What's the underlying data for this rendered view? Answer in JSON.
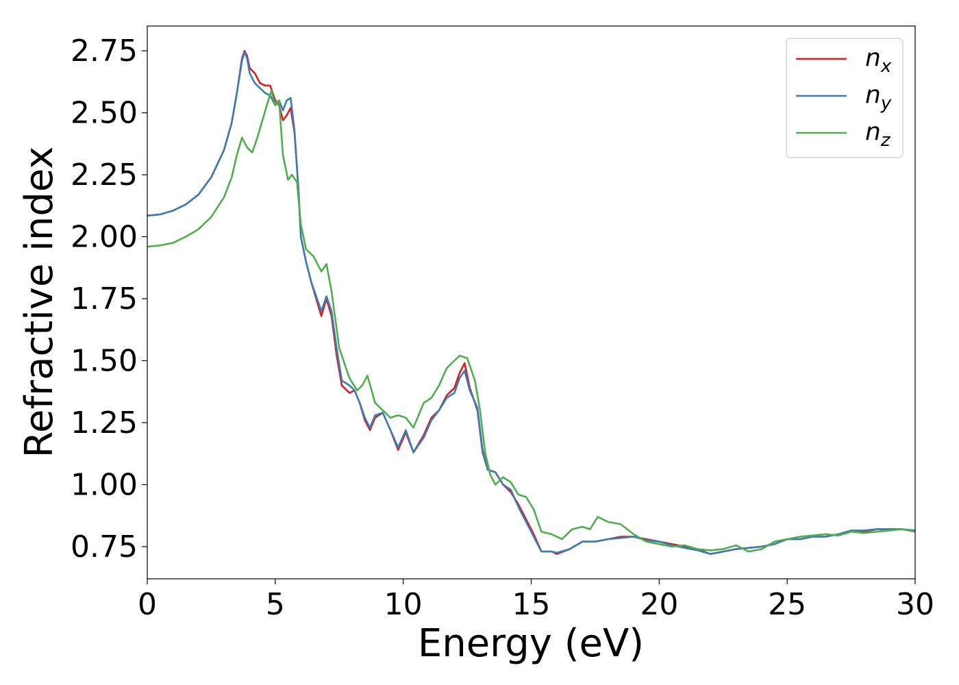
{
  "chart_data": {
    "type": "line",
    "title": "",
    "xlabel": "Energy (eV)",
    "ylabel": "Refractive index",
    "xlim": [
      0,
      30
    ],
    "ylim": [
      0.62,
      2.85
    ],
    "xticks": [
      "0",
      "5",
      "10",
      "15",
      "20",
      "25",
      "30"
    ],
    "yticks": [
      "0.75",
      "1.00",
      "1.25",
      "1.50",
      "1.75",
      "2.00",
      "2.25",
      "2.50",
      "2.75"
    ],
    "grid": false,
    "legend_position": "top-right",
    "series": [
      {
        "name": "n",
        "subscript": "x",
        "color": "#e41a1c",
        "points": [
          [
            0,
            2.085
          ],
          [
            0.5,
            2.09
          ],
          [
            1,
            2.105
          ],
          [
            1.5,
            2.13
          ],
          [
            2,
            2.17
          ],
          [
            2.5,
            2.24
          ],
          [
            3,
            2.35
          ],
          [
            3.3,
            2.46
          ],
          [
            3.5,
            2.58
          ],
          [
            3.7,
            2.72
          ],
          [
            3.8,
            2.75
          ],
          [
            3.9,
            2.73
          ],
          [
            4.0,
            2.68
          ],
          [
            4.2,
            2.66
          ],
          [
            4.4,
            2.62
          ],
          [
            4.6,
            2.61
          ],
          [
            4.8,
            2.61
          ],
          [
            5.0,
            2.55
          ],
          [
            5.15,
            2.53
          ],
          [
            5.3,
            2.47
          ],
          [
            5.45,
            2.49
          ],
          [
            5.6,
            2.52
          ],
          [
            5.75,
            2.42
          ],
          [
            5.9,
            2.2
          ],
          [
            6.0,
            2.0
          ],
          [
            6.2,
            1.9
          ],
          [
            6.4,
            1.82
          ],
          [
            6.6,
            1.75
          ],
          [
            6.8,
            1.68
          ],
          [
            7.0,
            1.75
          ],
          [
            7.2,
            1.68
          ],
          [
            7.4,
            1.52
          ],
          [
            7.6,
            1.4
          ],
          [
            7.9,
            1.37
          ],
          [
            8.1,
            1.38
          ],
          [
            8.3,
            1.33
          ],
          [
            8.5,
            1.26
          ],
          [
            8.7,
            1.22
          ],
          [
            8.9,
            1.27
          ],
          [
            9.2,
            1.29
          ],
          [
            9.5,
            1.22
          ],
          [
            9.8,
            1.14
          ],
          [
            10.1,
            1.21
          ],
          [
            10.4,
            1.13
          ],
          [
            10.8,
            1.2
          ],
          [
            11.1,
            1.27
          ],
          [
            11.4,
            1.3
          ],
          [
            11.7,
            1.36
          ],
          [
            12.0,
            1.39
          ],
          [
            12.2,
            1.45
          ],
          [
            12.4,
            1.49
          ],
          [
            12.6,
            1.39
          ],
          [
            12.9,
            1.3
          ],
          [
            13.1,
            1.13
          ],
          [
            13.3,
            1.06
          ],
          [
            13.6,
            1.05
          ],
          [
            13.9,
            1.0
          ],
          [
            14.2,
            0.97
          ],
          [
            14.5,
            0.92
          ],
          [
            14.8,
            0.86
          ],
          [
            15.1,
            0.8
          ],
          [
            15.4,
            0.73
          ],
          [
            15.8,
            0.73
          ],
          [
            16.0,
            0.72
          ],
          [
            16.5,
            0.74
          ],
          [
            17.0,
            0.77
          ],
          [
            17.5,
            0.77
          ],
          [
            18.0,
            0.78
          ],
          [
            18.5,
            0.79
          ],
          [
            19.0,
            0.79
          ],
          [
            19.5,
            0.78
          ],
          [
            20.0,
            0.77
          ],
          [
            20.5,
            0.76
          ],
          [
            21.0,
            0.75
          ],
          [
            21.5,
            0.74
          ],
          [
            22.0,
            0.72
          ],
          [
            22.5,
            0.73
          ],
          [
            23.0,
            0.74
          ],
          [
            23.5,
            0.745
          ],
          [
            24.0,
            0.75
          ],
          [
            24.5,
            0.76
          ],
          [
            25.0,
            0.78
          ],
          [
            25.5,
            0.78
          ],
          [
            26.0,
            0.79
          ],
          [
            26.5,
            0.79
          ],
          [
            27.0,
            0.8
          ],
          [
            27.5,
            0.81
          ],
          [
            28.0,
            0.81
          ],
          [
            28.5,
            0.82
          ],
          [
            29.0,
            0.82
          ],
          [
            29.5,
            0.82
          ],
          [
            30.0,
            0.81
          ]
        ]
      },
      {
        "name": "n",
        "subscript": "y",
        "color": "#377eb8",
        "points": [
          [
            0,
            2.085
          ],
          [
            0.5,
            2.09
          ],
          [
            1,
            2.105
          ],
          [
            1.5,
            2.13
          ],
          [
            2,
            2.17
          ],
          [
            2.5,
            2.24
          ],
          [
            3,
            2.35
          ],
          [
            3.3,
            2.46
          ],
          [
            3.5,
            2.58
          ],
          [
            3.7,
            2.71
          ],
          [
            3.8,
            2.745
          ],
          [
            3.9,
            2.72
          ],
          [
            4.0,
            2.66
          ],
          [
            4.2,
            2.62
          ],
          [
            4.4,
            2.6
          ],
          [
            4.6,
            2.58
          ],
          [
            4.8,
            2.57
          ],
          [
            5.0,
            2.53
          ],
          [
            5.15,
            2.55
          ],
          [
            5.3,
            2.51
          ],
          [
            5.45,
            2.55
          ],
          [
            5.6,
            2.56
          ],
          [
            5.75,
            2.43
          ],
          [
            5.9,
            2.2
          ],
          [
            6.0,
            2.0
          ],
          [
            6.2,
            1.9
          ],
          [
            6.4,
            1.82
          ],
          [
            6.6,
            1.76
          ],
          [
            6.8,
            1.7
          ],
          [
            7.0,
            1.76
          ],
          [
            7.2,
            1.7
          ],
          [
            7.4,
            1.55
          ],
          [
            7.6,
            1.42
          ],
          [
            7.9,
            1.4
          ],
          [
            8.1,
            1.38
          ],
          [
            8.3,
            1.33
          ],
          [
            8.5,
            1.27
          ],
          [
            8.7,
            1.23
          ],
          [
            8.9,
            1.28
          ],
          [
            9.2,
            1.29
          ],
          [
            9.5,
            1.22
          ],
          [
            9.8,
            1.15
          ],
          [
            10.1,
            1.22
          ],
          [
            10.4,
            1.13
          ],
          [
            10.8,
            1.19
          ],
          [
            11.1,
            1.26
          ],
          [
            11.4,
            1.3
          ],
          [
            11.7,
            1.35
          ],
          [
            12.0,
            1.37
          ],
          [
            12.2,
            1.43
          ],
          [
            12.4,
            1.46
          ],
          [
            12.6,
            1.38
          ],
          [
            12.9,
            1.31
          ],
          [
            13.1,
            1.14
          ],
          [
            13.3,
            1.06
          ],
          [
            13.6,
            1.05
          ],
          [
            13.9,
            1.0
          ],
          [
            14.2,
            0.98
          ],
          [
            14.5,
            0.91
          ],
          [
            14.8,
            0.85
          ],
          [
            15.1,
            0.79
          ],
          [
            15.4,
            0.73
          ],
          [
            15.8,
            0.73
          ],
          [
            16.0,
            0.725
          ],
          [
            16.5,
            0.74
          ],
          [
            17.0,
            0.77
          ],
          [
            17.5,
            0.77
          ],
          [
            18.0,
            0.78
          ],
          [
            18.5,
            0.785
          ],
          [
            19.0,
            0.79
          ],
          [
            19.5,
            0.775
          ],
          [
            20.0,
            0.77
          ],
          [
            20.5,
            0.755
          ],
          [
            21.0,
            0.745
          ],
          [
            21.5,
            0.735
          ],
          [
            22.0,
            0.72
          ],
          [
            22.5,
            0.73
          ],
          [
            23.0,
            0.74
          ],
          [
            23.5,
            0.745
          ],
          [
            24.0,
            0.75
          ],
          [
            24.5,
            0.76
          ],
          [
            25.0,
            0.78
          ],
          [
            25.5,
            0.78
          ],
          [
            26.0,
            0.79
          ],
          [
            26.5,
            0.79
          ],
          [
            27.0,
            0.8
          ],
          [
            27.5,
            0.815
          ],
          [
            28.0,
            0.815
          ],
          [
            28.5,
            0.82
          ],
          [
            29.0,
            0.82
          ],
          [
            29.5,
            0.82
          ],
          [
            30.0,
            0.815
          ]
        ]
      },
      {
        "name": "n",
        "subscript": "z",
        "color": "#4daf4a",
        "points": [
          [
            0,
            1.96
          ],
          [
            0.5,
            1.965
          ],
          [
            1,
            1.975
          ],
          [
            1.5,
            2.0
          ],
          [
            2,
            2.03
          ],
          [
            2.5,
            2.08
          ],
          [
            3,
            2.16
          ],
          [
            3.3,
            2.24
          ],
          [
            3.5,
            2.33
          ],
          [
            3.7,
            2.4
          ],
          [
            3.9,
            2.36
          ],
          [
            4.1,
            2.34
          ],
          [
            4.3,
            2.4
          ],
          [
            4.5,
            2.47
          ],
          [
            4.7,
            2.54
          ],
          [
            4.85,
            2.59
          ],
          [
            5.0,
            2.53
          ],
          [
            5.15,
            2.55
          ],
          [
            5.3,
            2.33
          ],
          [
            5.5,
            2.23
          ],
          [
            5.65,
            2.25
          ],
          [
            5.85,
            2.22
          ],
          [
            6.0,
            2.05
          ],
          [
            6.2,
            1.95
          ],
          [
            6.5,
            1.92
          ],
          [
            6.8,
            1.86
          ],
          [
            7.0,
            1.89
          ],
          [
            7.2,
            1.78
          ],
          [
            7.5,
            1.55
          ],
          [
            7.9,
            1.43
          ],
          [
            8.2,
            1.38
          ],
          [
            8.4,
            1.4
          ],
          [
            8.6,
            1.44
          ],
          [
            8.9,
            1.33
          ],
          [
            9.2,
            1.3
          ],
          [
            9.5,
            1.27
          ],
          [
            9.8,
            1.28
          ],
          [
            10.1,
            1.27
          ],
          [
            10.4,
            1.23
          ],
          [
            10.8,
            1.33
          ],
          [
            11.1,
            1.35
          ],
          [
            11.4,
            1.4
          ],
          [
            11.7,
            1.47
          ],
          [
            12.0,
            1.5
          ],
          [
            12.2,
            1.52
          ],
          [
            12.5,
            1.51
          ],
          [
            12.8,
            1.42
          ],
          [
            13.0,
            1.3
          ],
          [
            13.2,
            1.13
          ],
          [
            13.4,
            1.04
          ],
          [
            13.6,
            1.0
          ],
          [
            13.9,
            1.03
          ],
          [
            14.2,
            1.01
          ],
          [
            14.5,
            0.96
          ],
          [
            14.8,
            0.95
          ],
          [
            15.1,
            0.9
          ],
          [
            15.4,
            0.81
          ],
          [
            15.8,
            0.8
          ],
          [
            16.2,
            0.78
          ],
          [
            16.6,
            0.82
          ],
          [
            17.0,
            0.83
          ],
          [
            17.3,
            0.82
          ],
          [
            17.6,
            0.87
          ],
          [
            18.0,
            0.85
          ],
          [
            18.5,
            0.84
          ],
          [
            19.0,
            0.8
          ],
          [
            19.5,
            0.77
          ],
          [
            20.0,
            0.76
          ],
          [
            20.5,
            0.75
          ],
          [
            21.0,
            0.755
          ],
          [
            21.5,
            0.74
          ],
          [
            22.0,
            0.735
          ],
          [
            22.5,
            0.74
          ],
          [
            23.0,
            0.755
          ],
          [
            23.5,
            0.73
          ],
          [
            24.0,
            0.74
          ],
          [
            24.5,
            0.77
          ],
          [
            25.0,
            0.78
          ],
          [
            25.5,
            0.79
          ],
          [
            26.0,
            0.795
          ],
          [
            26.5,
            0.8
          ],
          [
            27.0,
            0.795
          ],
          [
            27.5,
            0.81
          ],
          [
            28.0,
            0.805
          ],
          [
            28.5,
            0.81
          ],
          [
            29.0,
            0.815
          ],
          [
            29.5,
            0.82
          ],
          [
            30.0,
            0.81
          ]
        ]
      }
    ]
  }
}
